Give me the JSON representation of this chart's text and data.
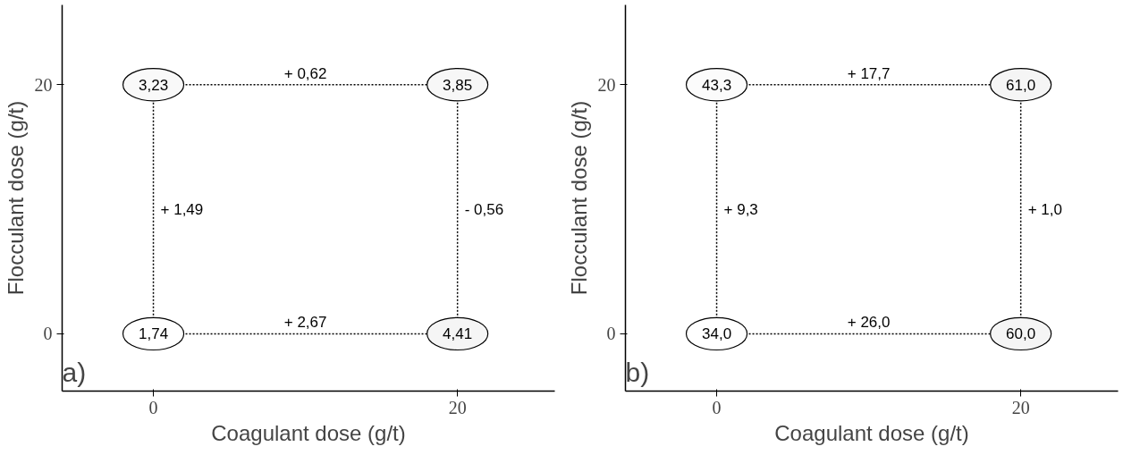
{
  "chart_data": [
    {
      "type": "heatmap",
      "xlabel": "Coagulant dose (g/t)",
      "ylabel": "Flocculant dose (g/t)",
      "categories": [
        "0",
        "20"
      ],
      "y_categories": [
        "20",
        "0"
      ],
      "cells": [
        [
          3.23,
          3.85
        ],
        [
          1.74,
          4.41
        ]
      ],
      "cell_labels": [
        [
          "3,23",
          "3,85"
        ],
        [
          "1,74",
          "4,41"
        ]
      ],
      "annotations": [
        "+ 0,62",
        "+ 2,67",
        "+ 1,49",
        "- 0,56",
        "a)"
      ]
    },
    {
      "type": "heatmap",
      "xlabel": "Coagulant dose (g/t)",
      "ylabel": "Flocculant dose (g/t)",
      "categories": [
        "0",
        "20"
      ],
      "y_categories": [
        "20",
        "0"
      ],
      "cells": [
        [
          43.3,
          61.0
        ],
        [
          34.0,
          60.0
        ]
      ],
      "cell_labels": [
        [
          "43,3",
          "61,0"
        ],
        [
          "34,0",
          "60,0"
        ]
      ],
      "annotations": [
        "+ 17,7",
        "+ 26,0",
        "+ 9,3",
        "+ 1,0",
        "b)"
      ]
    }
  ]
}
